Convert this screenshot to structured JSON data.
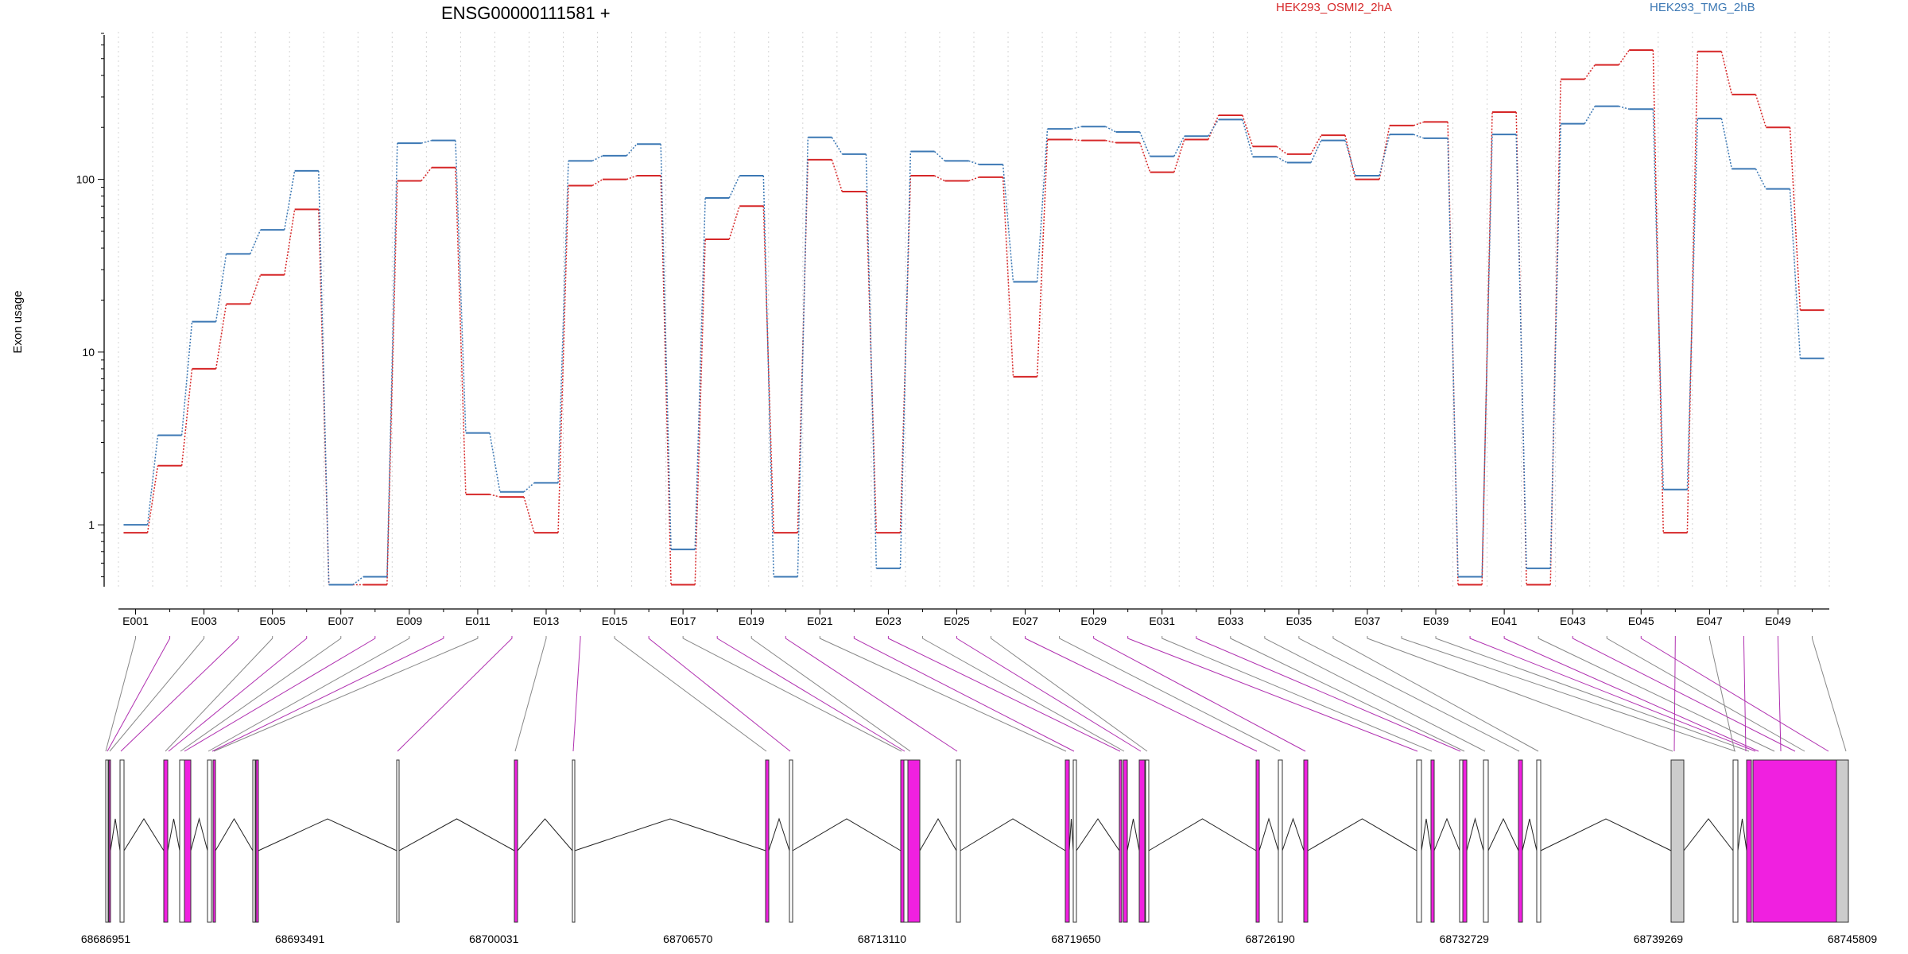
{
  "chart_data": {
    "type": "line",
    "title": "ENSG00000111581 +",
    "ylabel": "Exon usage",
    "yscale": "log",
    "ylim": [
      0.42,
      700
    ],
    "y_ticks": [
      1,
      10,
      100
    ],
    "y_tick_labels": [
      "1",
      "10",
      "100"
    ],
    "grid": "vertical dotted lines at each exon",
    "legend_placement": "top",
    "categories": [
      "E001",
      "E002",
      "E003",
      "E004",
      "E005",
      "E006",
      "E007",
      "E008",
      "E009",
      "E010",
      "E011",
      "E012",
      "E013",
      "E014",
      "E015",
      "E016",
      "E017",
      "E018",
      "E019",
      "E020",
      "E021",
      "E022",
      "E023",
      "E024",
      "E025",
      "E026",
      "E027",
      "E028",
      "E029",
      "E030",
      "E031",
      "E032",
      "E033",
      "E034",
      "E035",
      "E036",
      "E037",
      "E038",
      "E039",
      "E040",
      "E041",
      "E042",
      "E043",
      "E044",
      "E045",
      "E046",
      "E047",
      "E048",
      "E049",
      "E050"
    ],
    "x_tick_labels": [
      "E001",
      "E003",
      "E005",
      "E007",
      "E009",
      "E011",
      "E013",
      "E015",
      "E017",
      "E019",
      "E021",
      "E023",
      "E025",
      "E027",
      "E029",
      "E031",
      "E033",
      "E035",
      "E037",
      "E039",
      "E041",
      "E043",
      "E045",
      "E047",
      "E049"
    ],
    "series": [
      {
        "name": "HEK293_OSMI2_2hA",
        "color": "#d62728",
        "values": [
          0.9,
          2.2,
          8,
          19,
          28,
          67,
          0.45,
          0.45,
          98,
          117,
          1.5,
          1.45,
          0.9,
          92,
          100,
          105,
          0.45,
          45,
          70,
          0.9,
          130,
          85,
          0.9,
          105,
          98,
          103,
          7.2,
          170,
          168,
          163,
          110,
          170,
          235,
          155,
          140,
          180,
          100,
          205,
          215,
          0.45,
          245,
          0.45,
          380,
          460,
          560,
          0.9,
          550,
          310,
          200,
          17.5
        ]
      },
      {
        "name": "HEK293_TMG_2hB",
        "color": "#3c78b4",
        "values": [
          1.0,
          3.3,
          15,
          37,
          51,
          112,
          0.45,
          0.5,
          162,
          168,
          3.4,
          1.55,
          1.75,
          128,
          137,
          160,
          0.72,
          78,
          105,
          0.5,
          175,
          140,
          0.56,
          145,
          128,
          122,
          25.5,
          196,
          202,
          188,
          136,
          178,
          222,
          135,
          125,
          168,
          105,
          182,
          173,
          0.5,
          182,
          0.56,
          210,
          265,
          255,
          1.6,
          225,
          115,
          88,
          9.2
        ]
      }
    ],
    "gene_model": {
      "coord_ticks": [
        "68686951",
        "68693491",
        "68700031",
        "68706570",
        "68713110",
        "68719650",
        "68726190",
        "68732729",
        "68739269",
        "68745809"
      ],
      "exon_highlight": [
        false,
        true,
        false,
        true,
        false,
        true,
        false,
        true,
        false,
        true,
        false,
        true,
        false,
        true,
        false,
        true,
        false,
        true,
        false,
        true,
        false,
        true,
        true,
        false,
        true,
        false,
        true,
        false,
        true,
        true,
        false,
        true,
        false,
        false,
        false,
        false,
        false,
        false,
        false,
        true,
        true,
        false,
        true,
        false,
        true,
        true,
        false,
        true,
        true,
        false
      ]
    }
  }
}
